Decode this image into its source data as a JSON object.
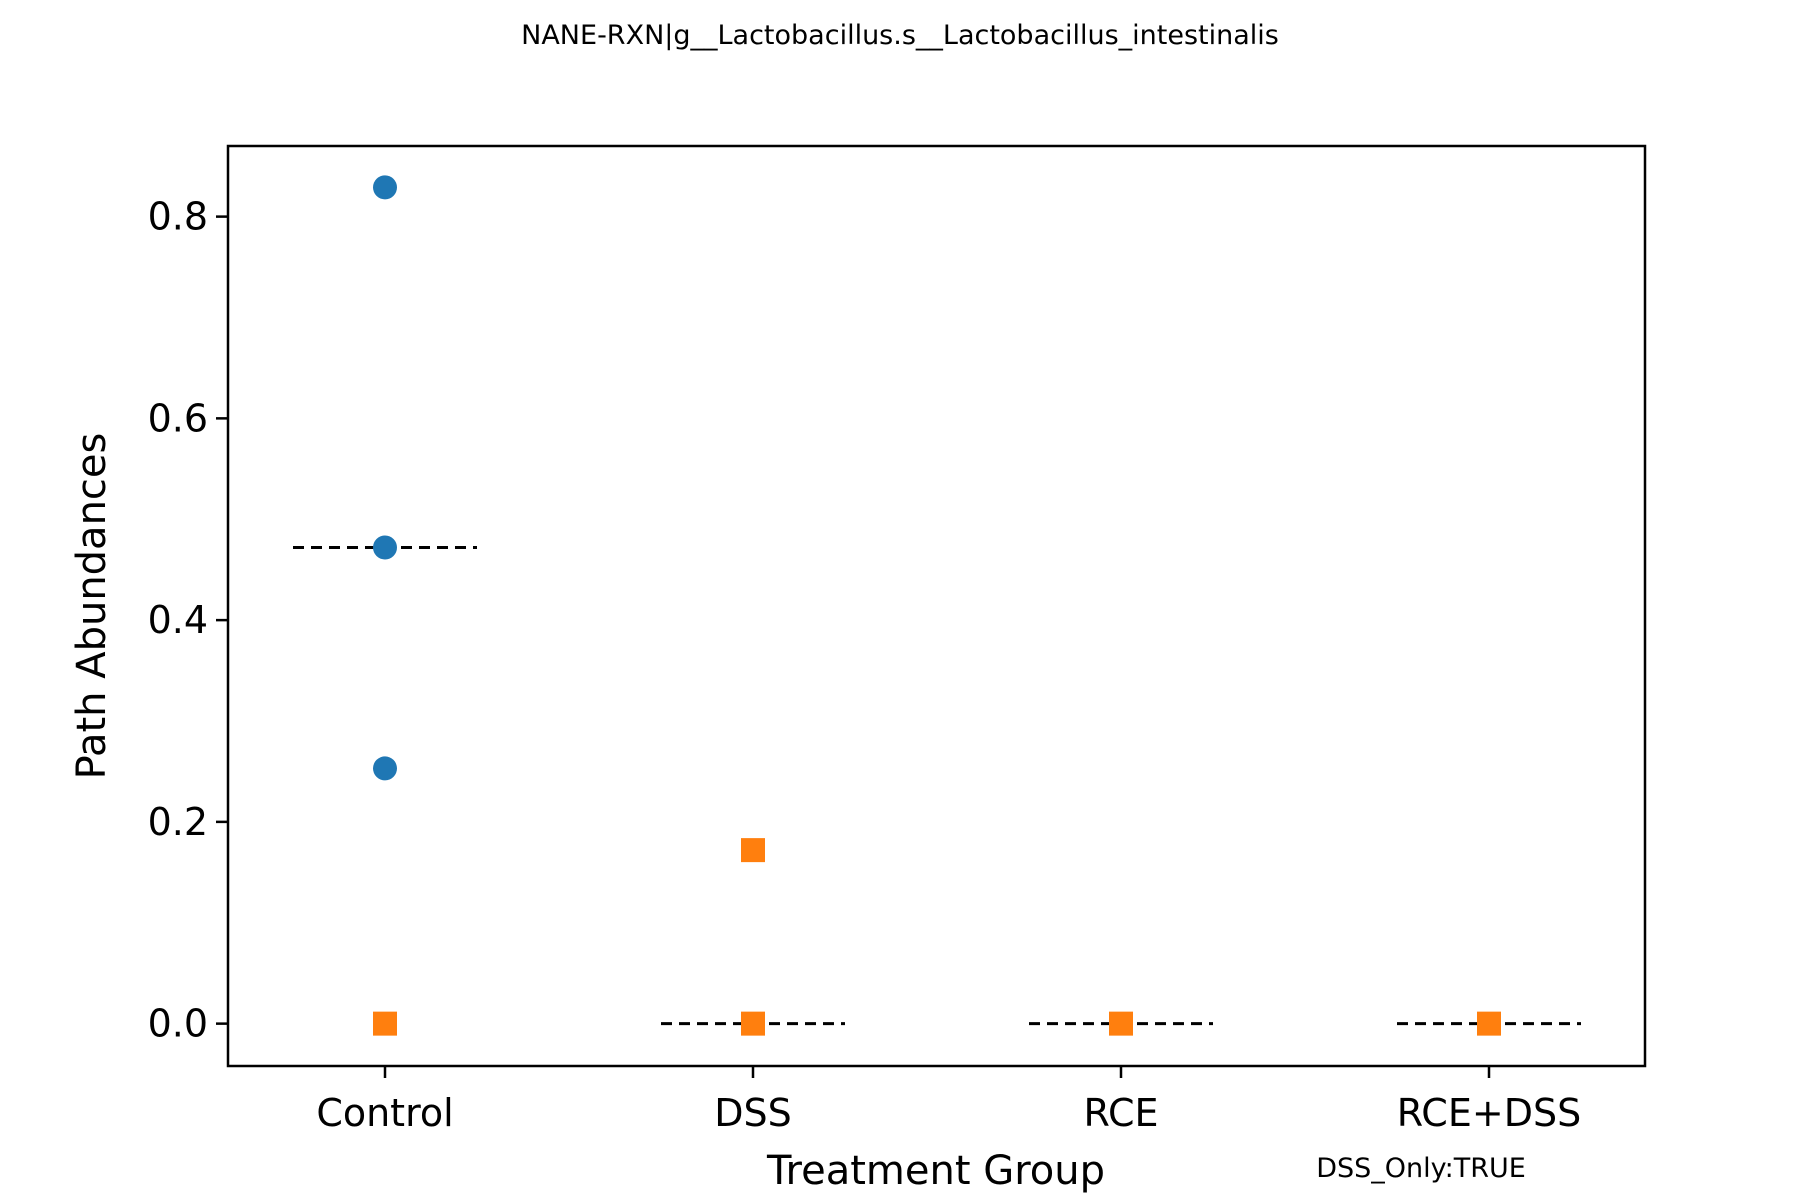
{
  "chart_data": {
    "type": "scatter",
    "title": "NANE-RXN|g__Lactobacillus.s__Lactobacillus_intestinalis",
    "xlabel": "Treatment Group",
    "ylabel": "Path Abundances",
    "categories": [
      "Control",
      "DSS",
      "RCE",
      "RCE+DSS"
    ],
    "ylim": [
      -0.042,
      0.87
    ],
    "yticks": [
      0.0,
      0.2,
      0.4,
      0.6,
      0.8
    ],
    "ytick_labels": [
      "0.0",
      "0.2",
      "0.4",
      "0.6",
      "0.8"
    ],
    "grid": false,
    "series": [
      {
        "marker": "circle",
        "color": "#1f77b4",
        "points": [
          {
            "category": "Control",
            "y": 0.829
          },
          {
            "category": "Control",
            "y": 0.472
          },
          {
            "category": "Control",
            "y": 0.253
          }
        ]
      },
      {
        "marker": "square",
        "color": "#ff7f0e",
        "points": [
          {
            "category": "Control",
            "y": 0.0
          },
          {
            "category": "DSS",
            "y": 0.172
          },
          {
            "category": "DSS",
            "y": 0.0
          },
          {
            "category": "RCE",
            "y": 0.0
          },
          {
            "category": "RCE+DSS",
            "y": 0.0
          }
        ]
      }
    ],
    "group_means": [
      {
        "category": "Control",
        "y": 0.472
      },
      {
        "category": "DSS",
        "y": 0.0
      },
      {
        "category": "RCE",
        "y": 0.0
      },
      {
        "category": "RCE+DSS",
        "y": 0.0
      }
    ],
    "mean_line_color": "#000000",
    "annotation": "DSS_Only:TRUE"
  }
}
